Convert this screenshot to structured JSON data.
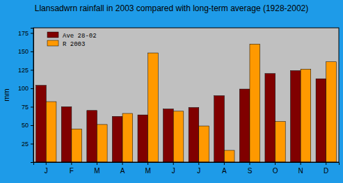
{
  "chart_data": {
    "type": "bar",
    "title": "Llansadwrn rainfall in 2003 compared with long-term average (1928-2002)",
    "y_label": "mm",
    "categories": [
      "J",
      "F",
      "M",
      "A",
      "M",
      "J",
      "J",
      "A",
      "S",
      "O",
      "N",
      "D"
    ],
    "series": [
      {
        "name": "Ave 28-02",
        "color": "#800000",
        "values": [
          104,
          75,
          70,
          62,
          64,
          72,
          74,
          90,
          99,
          120,
          124,
          113
        ]
      },
      {
        "name": "R 2003",
        "color": "#ff9900",
        "values": [
          82,
          45,
          51,
          66,
          148,
          69,
          49,
          16,
          160,
          55,
          126,
          136
        ]
      }
    ],
    "ylim": [
      0,
      182
    ],
    "yticks": [
      25,
      50,
      75,
      100,
      125,
      150,
      175
    ],
    "grid": false,
    "legend": "top-left"
  }
}
